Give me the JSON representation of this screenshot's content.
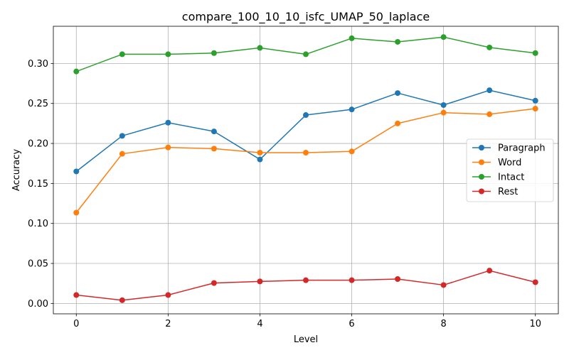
{
  "chart_data": {
    "type": "line",
    "title": "compare_100_10_10_isfc_UMAP_50_laplace",
    "xlabel": "Level",
    "ylabel": "Accuracy",
    "x": [
      0,
      1,
      2,
      3,
      4,
      5,
      6,
      7,
      8,
      9,
      10
    ],
    "xlim": [
      -0.5,
      10.5
    ],
    "ylim": [
      -0.013,
      0.3465
    ],
    "xticks": [
      0,
      2,
      4,
      6,
      8,
      10
    ],
    "yticks": [
      0.0,
      0.05,
      0.1,
      0.15,
      0.2,
      0.25,
      0.3
    ],
    "xtick_labels": [
      "0",
      "2",
      "4",
      "6",
      "8",
      "10"
    ],
    "ytick_labels": [
      "0.00",
      "0.05",
      "0.10",
      "0.15",
      "0.20",
      "0.25",
      "0.30"
    ],
    "grid": true,
    "legend_position": "center-right",
    "series": [
      {
        "name": "Paragraph",
        "color": "#1f77b4",
        "values": [
          0.165,
          0.2095,
          0.226,
          0.215,
          0.18,
          0.2355,
          0.2425,
          0.263,
          0.248,
          0.2665,
          0.2535
        ]
      },
      {
        "name": "Word",
        "color": "#ff7f0e",
        "values": [
          0.1135,
          0.187,
          0.195,
          0.1935,
          0.1885,
          0.1885,
          0.19,
          0.225,
          0.2385,
          0.2365,
          0.2435
        ]
      },
      {
        "name": "Intact",
        "color": "#2ca02c",
        "values": [
          0.29,
          0.3115,
          0.3115,
          0.313,
          0.3195,
          0.3115,
          0.3315,
          0.327,
          0.333,
          0.32,
          0.313
        ]
      },
      {
        "name": "Rest",
        "color": "#d62728",
        "values": [
          0.0105,
          0.004,
          0.0105,
          0.0255,
          0.0275,
          0.029,
          0.029,
          0.0305,
          0.023,
          0.041,
          0.0265
        ]
      }
    ]
  }
}
